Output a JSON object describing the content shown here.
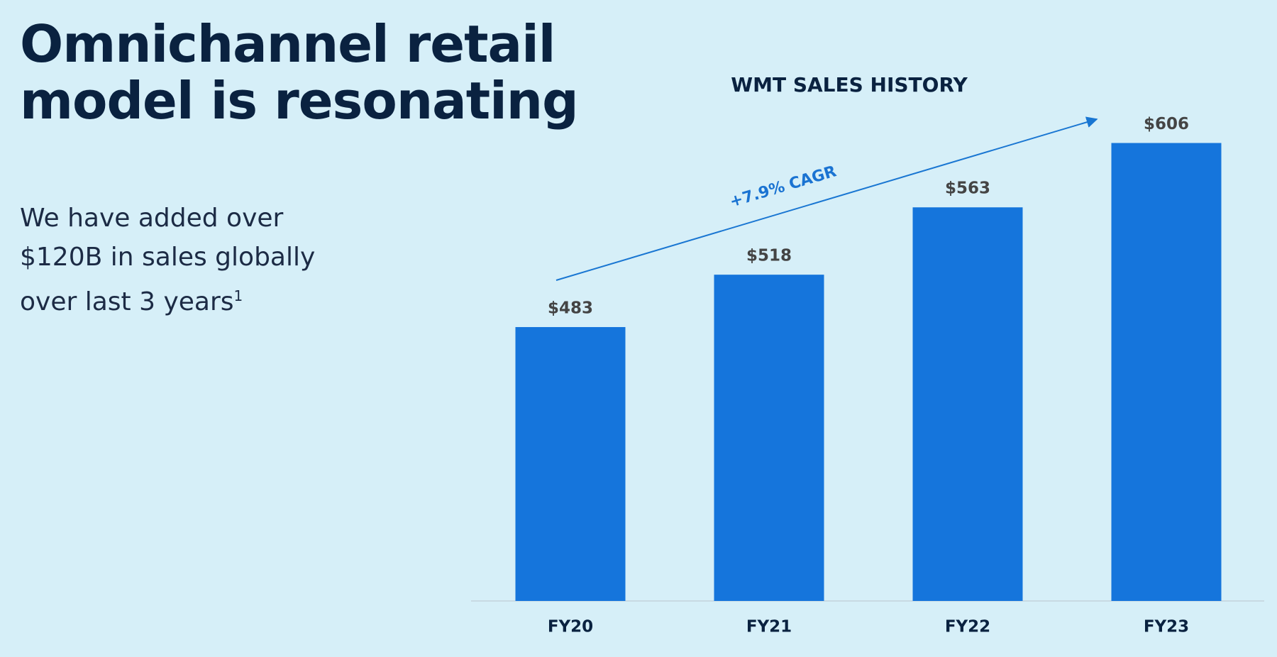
{
  "slide": {
    "title_lines": [
      "Omnichannel retail",
      "model is resonating"
    ],
    "body_lines": [
      "We have added over",
      "$120B in sales globally",
      "over last 3 years"
    ],
    "footnote_marker": "1"
  },
  "chart_data": {
    "type": "bar",
    "title": "WMT SALES HISTORY",
    "annotation": "+7.9% CAGR",
    "categories": [
      "FY20",
      "FY21",
      "FY22",
      "FY23"
    ],
    "values": [
      483,
      518,
      563,
      606
    ],
    "value_labels": [
      "$483",
      "$518",
      "$563",
      "$606"
    ],
    "color": "#1575dc",
    "ylim": [
      300,
      620
    ]
  }
}
